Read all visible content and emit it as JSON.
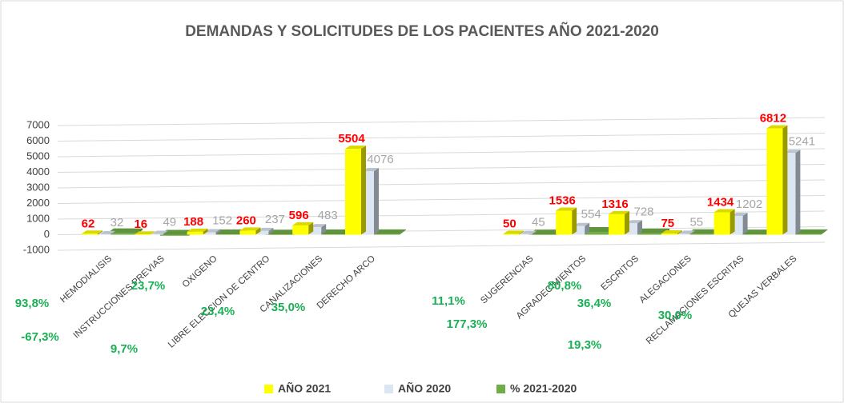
{
  "chart_data": {
    "type": "bar3d",
    "title": "DEMANDAS Y SOLICITUDES DE LOS PACIENTES AÑO 2021-2020",
    "categories": [
      "HEMODIALISIS",
      "INSTRUCCIONES PREVIAS",
      "OXIGENO",
      "LIBRE ELECCION DE CENTRO",
      "CANALIZACIONES",
      "DERECHO ARCO",
      null,
      null,
      "SUGERENCIAS",
      "AGRADECIMIENTOS",
      "ESCRITOS",
      "ALEGACIONES",
      "RECLAMACIONES ESCRITAS",
      "QUEJAS VERBALES"
    ],
    "series": [
      {
        "name": "AÑO 2021",
        "color": "#ffff00",
        "values": [
          62,
          16,
          188,
          260,
          596,
          5504,
          null,
          null,
          50,
          1536,
          1316,
          75,
          1434,
          6812
        ]
      },
      {
        "name": "AÑO 2020",
        "color": "#dce6f2",
        "values": [
          32,
          49,
          152,
          237,
          483,
          4076,
          null,
          null,
          45,
          554,
          728,
          55,
          1202,
          5241
        ]
      },
      {
        "name": "% 2021-2020",
        "color": "#70ad47",
        "values": [
          93.8,
          -67.3,
          23.7,
          9.7,
          23.4,
          35.0,
          null,
          null,
          11.1,
          177.3,
          80.8,
          36.4,
          19.3,
          30.0
        ],
        "value_labels": [
          "93,8%",
          "-67,3%",
          "23,7%",
          "9,7%",
          "23,4%",
          "35,0%",
          null,
          null,
          "11,1%",
          "177,3%",
          "80,8%",
          "36,4%",
          "19,3%",
          "30,0%"
        ]
      }
    ],
    "ylim": [
      -1000,
      7000
    ],
    "yticks": [
      -1000,
      0,
      1000,
      2000,
      3000,
      4000,
      5000,
      6000,
      7000
    ],
    "grid": true,
    "legend": "bottom"
  }
}
